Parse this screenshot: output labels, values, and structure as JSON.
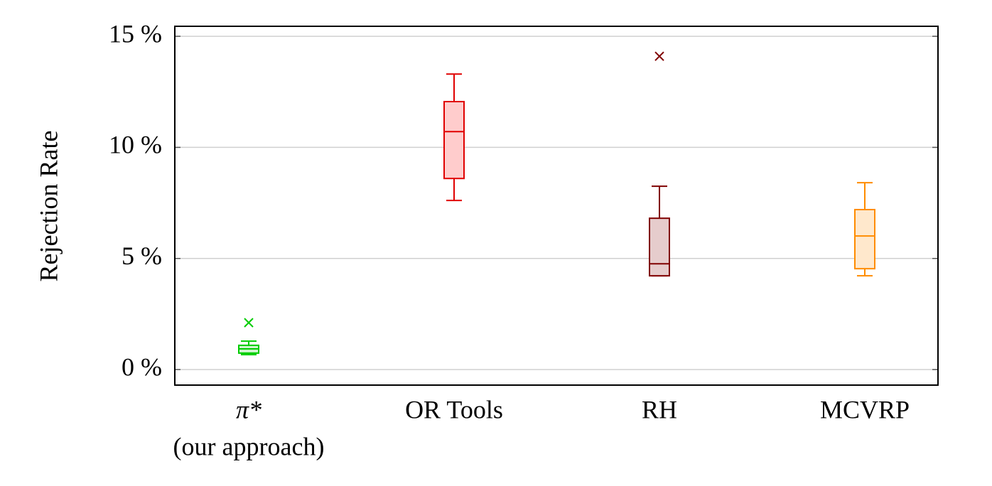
{
  "chart_data": {
    "type": "box",
    "y_label": "Rejection Rate",
    "categories": [
      [
        "π*",
        "(our approach)"
      ],
      [
        "OR Tools"
      ],
      [
        "RH"
      ],
      [
        "MCVRP"
      ]
    ],
    "boxes": [
      {
        "whisker_low": 0.67,
        "q1": 0.74,
        "median": 0.93,
        "q3": 1.09,
        "whisker_high": 1.28,
        "outliers": [
          2.11
        ],
        "color": "#00cc00",
        "fill": "#ccf5cc"
      },
      {
        "whisker_low": 7.61,
        "q1": 8.6,
        "median": 10.71,
        "q3": 12.06,
        "whisker_high": 13.3,
        "outliers": [],
        "color": "#e00000",
        "fill": "#ffcccc"
      },
      {
        "whisker_low": 4.22,
        "q1": 4.22,
        "median": 4.76,
        "q3": 6.81,
        "whisker_high": 8.25,
        "outliers": [
          14.1
        ],
        "color": "#800000",
        "fill": "#e6cccc"
      },
      {
        "whisker_low": 4.22,
        "q1": 4.54,
        "median": 6.01,
        "q3": 7.2,
        "whisker_high": 8.41,
        "outliers": [],
        "color": "#ff8c00",
        "fill": "#ffe8cc"
      }
    ],
    "ylim": [
      -0.7,
      15.45
    ],
    "yticks": [
      {
        "value": 0,
        "label": "0 %"
      },
      {
        "value": 5,
        "label": "5 %"
      },
      {
        "value": 10,
        "label": "10 %"
      },
      {
        "value": 15,
        "label": "15 %"
      }
    ],
    "grid": true
  }
}
